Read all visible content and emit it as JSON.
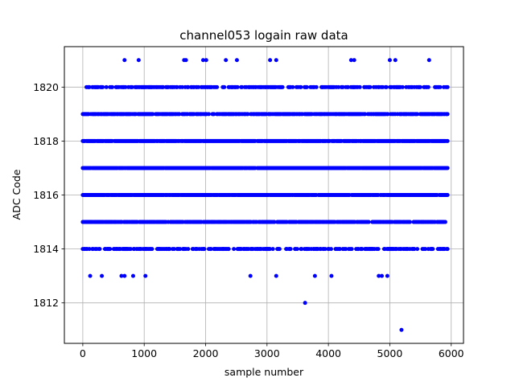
{
  "chart_data": {
    "type": "scatter",
    "title": "channel053 logain raw data",
    "xlabel": "sample number",
    "ylabel": "ADC Code",
    "xlim": [
      -300,
      6200
    ],
    "ylim": [
      1810.5,
      1821.5
    ],
    "xticks": [
      0,
      1000,
      2000,
      3000,
      4000,
      5000,
      6000
    ],
    "yticks": [
      1812,
      1814,
      1816,
      1818,
      1820
    ],
    "grid": true,
    "marker_color": "#0000ff",
    "series": [
      {
        "sample_range": [
          0,
          5950
        ],
        "dense_levels": [
          1814,
          1815,
          1816,
          1817,
          1818,
          1819,
          1820
        ],
        "sparse_points": [
          {
            "x": 680,
            "y": 1821
          },
          {
            "x": 910,
            "y": 1821
          },
          {
            "x": 1650,
            "y": 1821
          },
          {
            "x": 1680,
            "y": 1821
          },
          {
            "x": 1960,
            "y": 1821
          },
          {
            "x": 2010,
            "y": 1821
          },
          {
            "x": 2330,
            "y": 1821
          },
          {
            "x": 2510,
            "y": 1821
          },
          {
            "x": 3050,
            "y": 1821
          },
          {
            "x": 3150,
            "y": 1821
          },
          {
            "x": 4370,
            "y": 1821
          },
          {
            "x": 4420,
            "y": 1821
          },
          {
            "x": 5000,
            "y": 1821
          },
          {
            "x": 5090,
            "y": 1821
          },
          {
            "x": 5640,
            "y": 1821
          },
          {
            "x": 120,
            "y": 1813
          },
          {
            "x": 310,
            "y": 1813
          },
          {
            "x": 630,
            "y": 1813
          },
          {
            "x": 680,
            "y": 1813
          },
          {
            "x": 820,
            "y": 1813
          },
          {
            "x": 1020,
            "y": 1813
          },
          {
            "x": 2730,
            "y": 1813
          },
          {
            "x": 3150,
            "y": 1813
          },
          {
            "x": 3780,
            "y": 1813
          },
          {
            "x": 4050,
            "y": 1813
          },
          {
            "x": 4820,
            "y": 1813
          },
          {
            "x": 4870,
            "y": 1813
          },
          {
            "x": 4960,
            "y": 1813
          },
          {
            "x": 3620,
            "y": 1812
          },
          {
            "x": 5190,
            "y": 1811
          }
        ]
      }
    ]
  }
}
